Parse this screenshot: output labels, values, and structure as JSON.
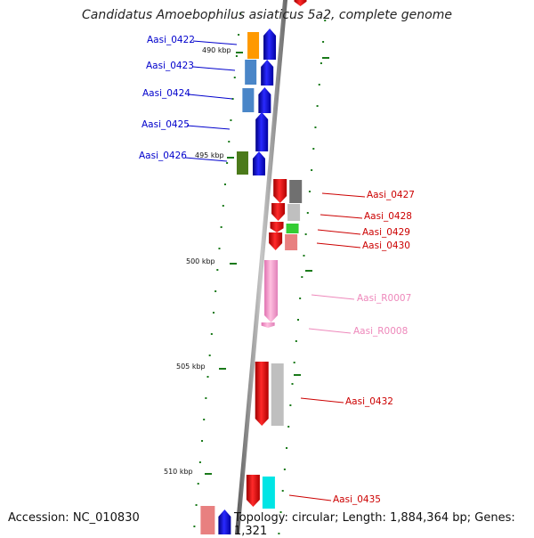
{
  "title": "Candidatus Amoebophilus asiaticus 5a2, complete genome",
  "footer": {
    "accession": "Accession: NC_010830",
    "summary": "Topology: circular; Length: 1,884,364 bp; Genes: 1,321"
  },
  "colors": {
    "backbone": "#8a8a8a",
    "forward_strand": "#0000ee",
    "reverse_strand": "#ee0000",
    "tick": "#1a7a1a",
    "rna": "#ff99cc"
  },
  "kbp_markers": [
    "490 kbp",
    "495 kbp",
    "500 kbp",
    "505 kbp",
    "510 kbp"
  ],
  "genes": [
    {
      "id": "Aasi_0422",
      "strand": "forward",
      "color": "#0000ee",
      "cog_color": "#ff9900"
    },
    {
      "id": "Aasi_0423",
      "strand": "forward",
      "color": "#0000ee",
      "cog_color": "#4a86c8"
    },
    {
      "id": "Aasi_0424",
      "strand": "forward",
      "color": "#0000ee",
      "cog_color": "#4a86c8"
    },
    {
      "id": "Aasi_0425",
      "strand": "forward",
      "color": "#0000ee",
      "cog_color": ""
    },
    {
      "id": "Aasi_0426",
      "strand": "forward",
      "color": "#0000ee",
      "cog_color": "#4b7a1a"
    },
    {
      "id": "Aasi_0427",
      "strand": "reverse",
      "color": "#ee0000",
      "cog_color": "#707070"
    },
    {
      "id": "Aasi_0428",
      "strand": "reverse",
      "color": "#ee0000",
      "cog_color": "#bfbfbf"
    },
    {
      "id": "Aasi_0429",
      "strand": "reverse",
      "color": "#ee0000",
      "cog_color": "#33cc33"
    },
    {
      "id": "Aasi_0430",
      "strand": "reverse",
      "color": "#ee0000",
      "cog_color": "#e88080"
    },
    {
      "id": "Aasi_R0007",
      "strand": "reverse",
      "color": "#ff99cc",
      "cog_color": ""
    },
    {
      "id": "Aasi_R0008",
      "strand": "reverse",
      "color": "#ff99cc",
      "cog_color": ""
    },
    {
      "id": "Aasi_0432",
      "strand": "reverse",
      "color": "#ee0000",
      "cog_color": "#bfbfbf"
    },
    {
      "id": "Aasi_0435",
      "strand": "reverse",
      "color": "#ee0000",
      "cog_color": "#00e5e5"
    }
  ]
}
